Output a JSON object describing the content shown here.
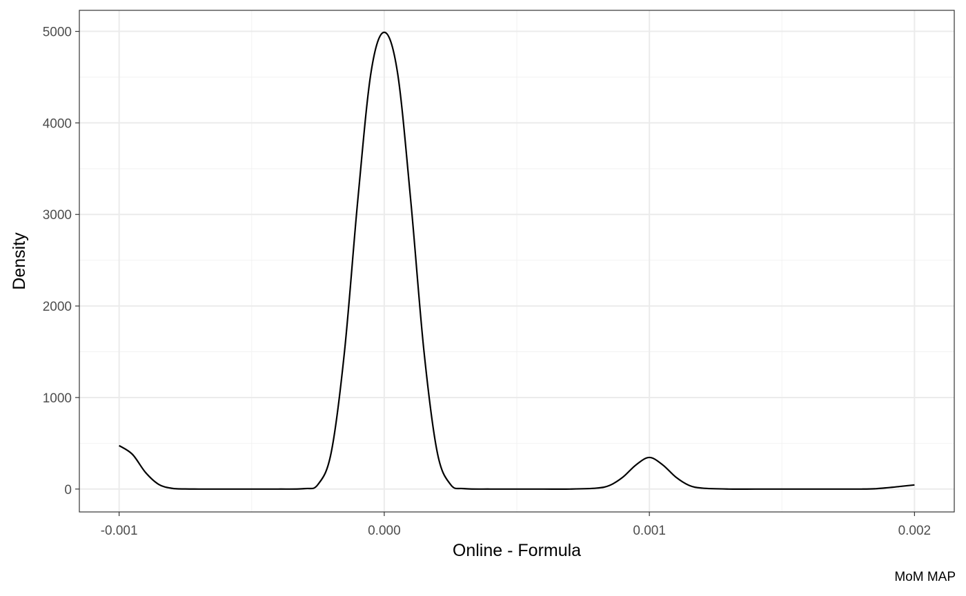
{
  "chart_data": {
    "type": "line",
    "xlabel": "Online - Formula",
    "ylabel": "Density",
    "caption": "MoM MAP",
    "xlim": [
      -0.00115,
      0.00215
    ],
    "ylim": [
      -250,
      5230
    ],
    "x_ticks": [
      -0.001,
      0,
      0.001,
      0.002
    ],
    "x_tick_labels": [
      "-0.001",
      "0.000",
      "0.001",
      "0.002"
    ],
    "y_ticks": [
      0,
      1000,
      2000,
      3000,
      4000,
      5000
    ],
    "y_tick_labels": [
      "0",
      "1000",
      "2000",
      "3000",
      "4000",
      "5000"
    ],
    "grid": true,
    "series": [
      {
        "color": "#000000",
        "x": [
          -0.001,
          -0.00095,
          -0.0009,
          -0.00085,
          -0.0008,
          -0.00075,
          -0.0007,
          -0.0006,
          -0.0005,
          -0.0004,
          -0.0003,
          -0.00025,
          -0.0002,
          -0.00015,
          -0.0001,
          -5e-05,
          0,
          5e-05,
          0.0001,
          0.00015,
          0.0002,
          0.00025,
          0.0003,
          0.0004,
          0.0005,
          0.0006,
          0.0007,
          0.0008,
          0.00085,
          0.0009,
          0.00095,
          0.001,
          0.00105,
          0.0011,
          0.00115,
          0.0012,
          0.0013,
          0.0014,
          0.0015,
          0.0016,
          0.0017,
          0.0018,
          0.00185,
          0.0019,
          0.00195,
          0.002
        ],
        "y": [
          475,
          380,
          180,
          50,
          8,
          1,
          0,
          0,
          0,
          0,
          5,
          50,
          400,
          1500,
          3150,
          4550,
          4990,
          4550,
          3150,
          1500,
          400,
          50,
          5,
          0,
          0,
          0,
          0,
          10,
          40,
          130,
          265,
          345,
          265,
          130,
          40,
          10,
          0,
          0,
          0,
          0,
          0,
          0,
          3,
          15,
          30,
          45
        ]
      }
    ]
  }
}
